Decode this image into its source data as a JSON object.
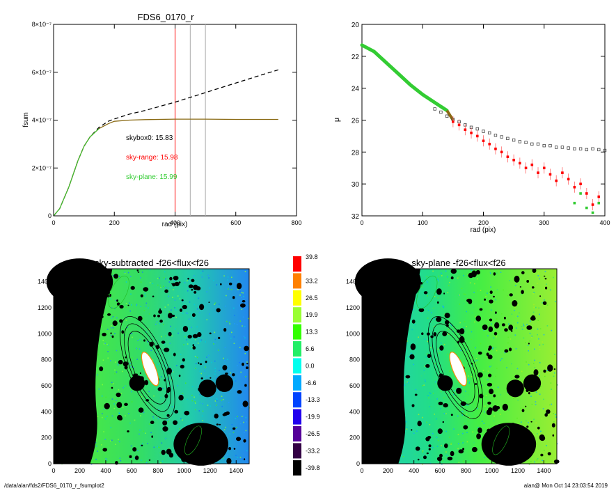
{
  "colors": {
    "black": "#000000",
    "red": "#ff0000",
    "green": "#33cc33",
    "olive": "#8a6a14",
    "gray": "#aaaaaa",
    "dark_gray": "#444444"
  },
  "chart_data": [
    {
      "type": "line",
      "title": "FDS6_0170_r",
      "xlabel": "rad (pix)",
      "ylabel": "fsum",
      "xlim": [
        0,
        800
      ],
      "ylim": [
        0,
        8e-07
      ],
      "xticks": [
        "0",
        "200",
        "400",
        "600",
        "800"
      ],
      "yticks": [
        "0",
        "2×10⁻⁷",
        "4×10⁻⁷",
        "6×10⁻⁷",
        "8×10⁻⁷"
      ],
      "ytick_values": [
        0,
        2e-07,
        4e-07,
        6e-07,
        8e-07
      ],
      "vlines": [
        {
          "x": 400,
          "color": "#ff0000"
        },
        {
          "x": 450,
          "color": "#aaaaaa"
        },
        {
          "x": 500,
          "color": "#aaaaaa"
        }
      ],
      "annotations": [
        {
          "text": "skybox0: 15.83",
          "color": "#000000"
        },
        {
          "text": "sky-range: 15.98",
          "color": "#ff0000"
        },
        {
          "text": "sky-plane: 15.99",
          "color": "#33cc33"
        }
      ],
      "series": [
        {
          "style": "dashed",
          "color": "#000000",
          "x": [
            0,
            20,
            50,
            80,
            100,
            120,
            150,
            180,
            200,
            250,
            300,
            400,
            500,
            600,
            700,
            740
          ],
          "y": [
            0,
            3e-08,
            1.2e-07,
            2.3e-07,
            2.9e-07,
            3.3e-07,
            3.7e-07,
            3.95e-07,
            4.05e-07,
            4.25e-07,
            4.4e-07,
            4.75e-07,
            5.15e-07,
            5.55e-07,
            5.95e-07,
            6.1e-07
          ]
        },
        {
          "style": "solid",
          "color": "#8a6a14",
          "x": [
            0,
            20,
            50,
            80,
            100,
            120,
            150,
            180,
            200,
            250,
            300,
            400,
            500,
            600,
            700,
            740
          ],
          "y": [
            0,
            3e-08,
            1.2e-07,
            2.3e-07,
            2.9e-07,
            3.3e-07,
            3.65e-07,
            3.85e-07,
            3.95e-07,
            4e-07,
            4.02e-07,
            4.04e-07,
            4.04e-07,
            4.03e-07,
            4.03e-07,
            4.03e-07
          ]
        }
      ]
    },
    {
      "type": "scatter",
      "xlabel": "rad (pix)",
      "ylabel": "μ",
      "xlim": [
        0,
        400
      ],
      "ylim": [
        32,
        20
      ],
      "xticks": [
        "0",
        "100",
        "200",
        "300",
        "400"
      ],
      "yticks": [
        "20",
        "22",
        "24",
        "26",
        "28",
        "30",
        "32"
      ],
      "series": [
        {
          "color": "#444444",
          "marker": "square",
          "x": [
            120,
            130,
            140,
            150,
            160,
            170,
            180,
            190,
            200,
            210,
            220,
            230,
            240,
            250,
            260,
            270,
            280,
            290,
            300,
            310,
            320,
            330,
            340,
            350,
            360,
            370,
            380,
            390,
            400
          ],
          "y": [
            25.3,
            25.5,
            25.75,
            25.95,
            26.1,
            26.3,
            26.45,
            26.55,
            26.7,
            26.8,
            26.95,
            27.05,
            27.15,
            27.25,
            27.35,
            27.4,
            27.5,
            27.5,
            27.6,
            27.6,
            27.7,
            27.7,
            27.75,
            27.8,
            27.8,
            27.85,
            27.8,
            27.85,
            27.9
          ]
        },
        {
          "color": "#ff0000",
          "marker": "square",
          "x": [
            150,
            160,
            170,
            180,
            190,
            200,
            210,
            220,
            230,
            240,
            250,
            260,
            270,
            280,
            290,
            300,
            310,
            320,
            330,
            340,
            350,
            360,
            370,
            380,
            390
          ],
          "y": [
            26.1,
            26.3,
            26.6,
            26.8,
            27.0,
            27.3,
            27.5,
            27.8,
            28.0,
            28.3,
            28.5,
            28.7,
            29.0,
            28.8,
            29.3,
            29.0,
            29.4,
            29.8,
            29.3,
            29.7,
            30.2,
            30.0,
            30.6,
            31.3,
            30.8
          ]
        },
        {
          "color": "#33cc33",
          "marker": "square",
          "x": [
            350,
            360,
            370,
            380,
            390
          ],
          "y": [
            31.2,
            30.6,
            31.5,
            31.8,
            31.2
          ]
        }
      ],
      "profile": {
        "x": [
          0,
          20,
          40,
          60,
          80,
          100,
          120,
          140
        ],
        "y": [
          21.3,
          21.7,
          22.4,
          23.1,
          23.8,
          24.4,
          24.9,
          25.4
        ],
        "color": "#33cc33"
      }
    },
    {
      "type": "heatmap",
      "title": "sky-subtracted -f26<flux<f26",
      "xticks": [
        "0",
        "200",
        "400",
        "600",
        "800",
        "1000",
        "1200",
        "1400"
      ],
      "yticks": [
        "0",
        "200",
        "400",
        "600",
        "800",
        "1000",
        "1200",
        "1400"
      ],
      "xlim": [
        0,
        1500
      ],
      "ylim": [
        0,
        1500
      ]
    },
    {
      "type": "heatmap",
      "title": "sky-plane -f26<flux<f26",
      "xticks": [
        "0",
        "200",
        "400",
        "600",
        "800",
        "1000",
        "1200",
        "1400"
      ],
      "yticks": [
        "0",
        "200",
        "400",
        "600",
        "800",
        "1000",
        "1200",
        "1400"
      ],
      "xlim": [
        0,
        1500
      ],
      "ylim": [
        0,
        1500
      ]
    }
  ],
  "colorbar": {
    "labels": [
      "39.8",
      "33.2",
      "26.5",
      "19.9",
      "13.3",
      "6.6",
      "0.0",
      "-6.6",
      "-13.3",
      "-19.9",
      "-26.5",
      "-33.2",
      "-39.8"
    ],
    "colors": [
      "#ff0000",
      "#ff8000",
      "#ffff00",
      "#99ff33",
      "#33ff00",
      "#22ee66",
      "#00ffee",
      "#00aaff",
      "#0044ff",
      "#2200ee",
      "#550099",
      "#330044",
      "#000000"
    ]
  },
  "footer": {
    "left": "/data/alan/fds2/FDS6_0170_r_fsumplot2",
    "right": "alan@  Mon Oct 14 23:03:54 2019"
  }
}
